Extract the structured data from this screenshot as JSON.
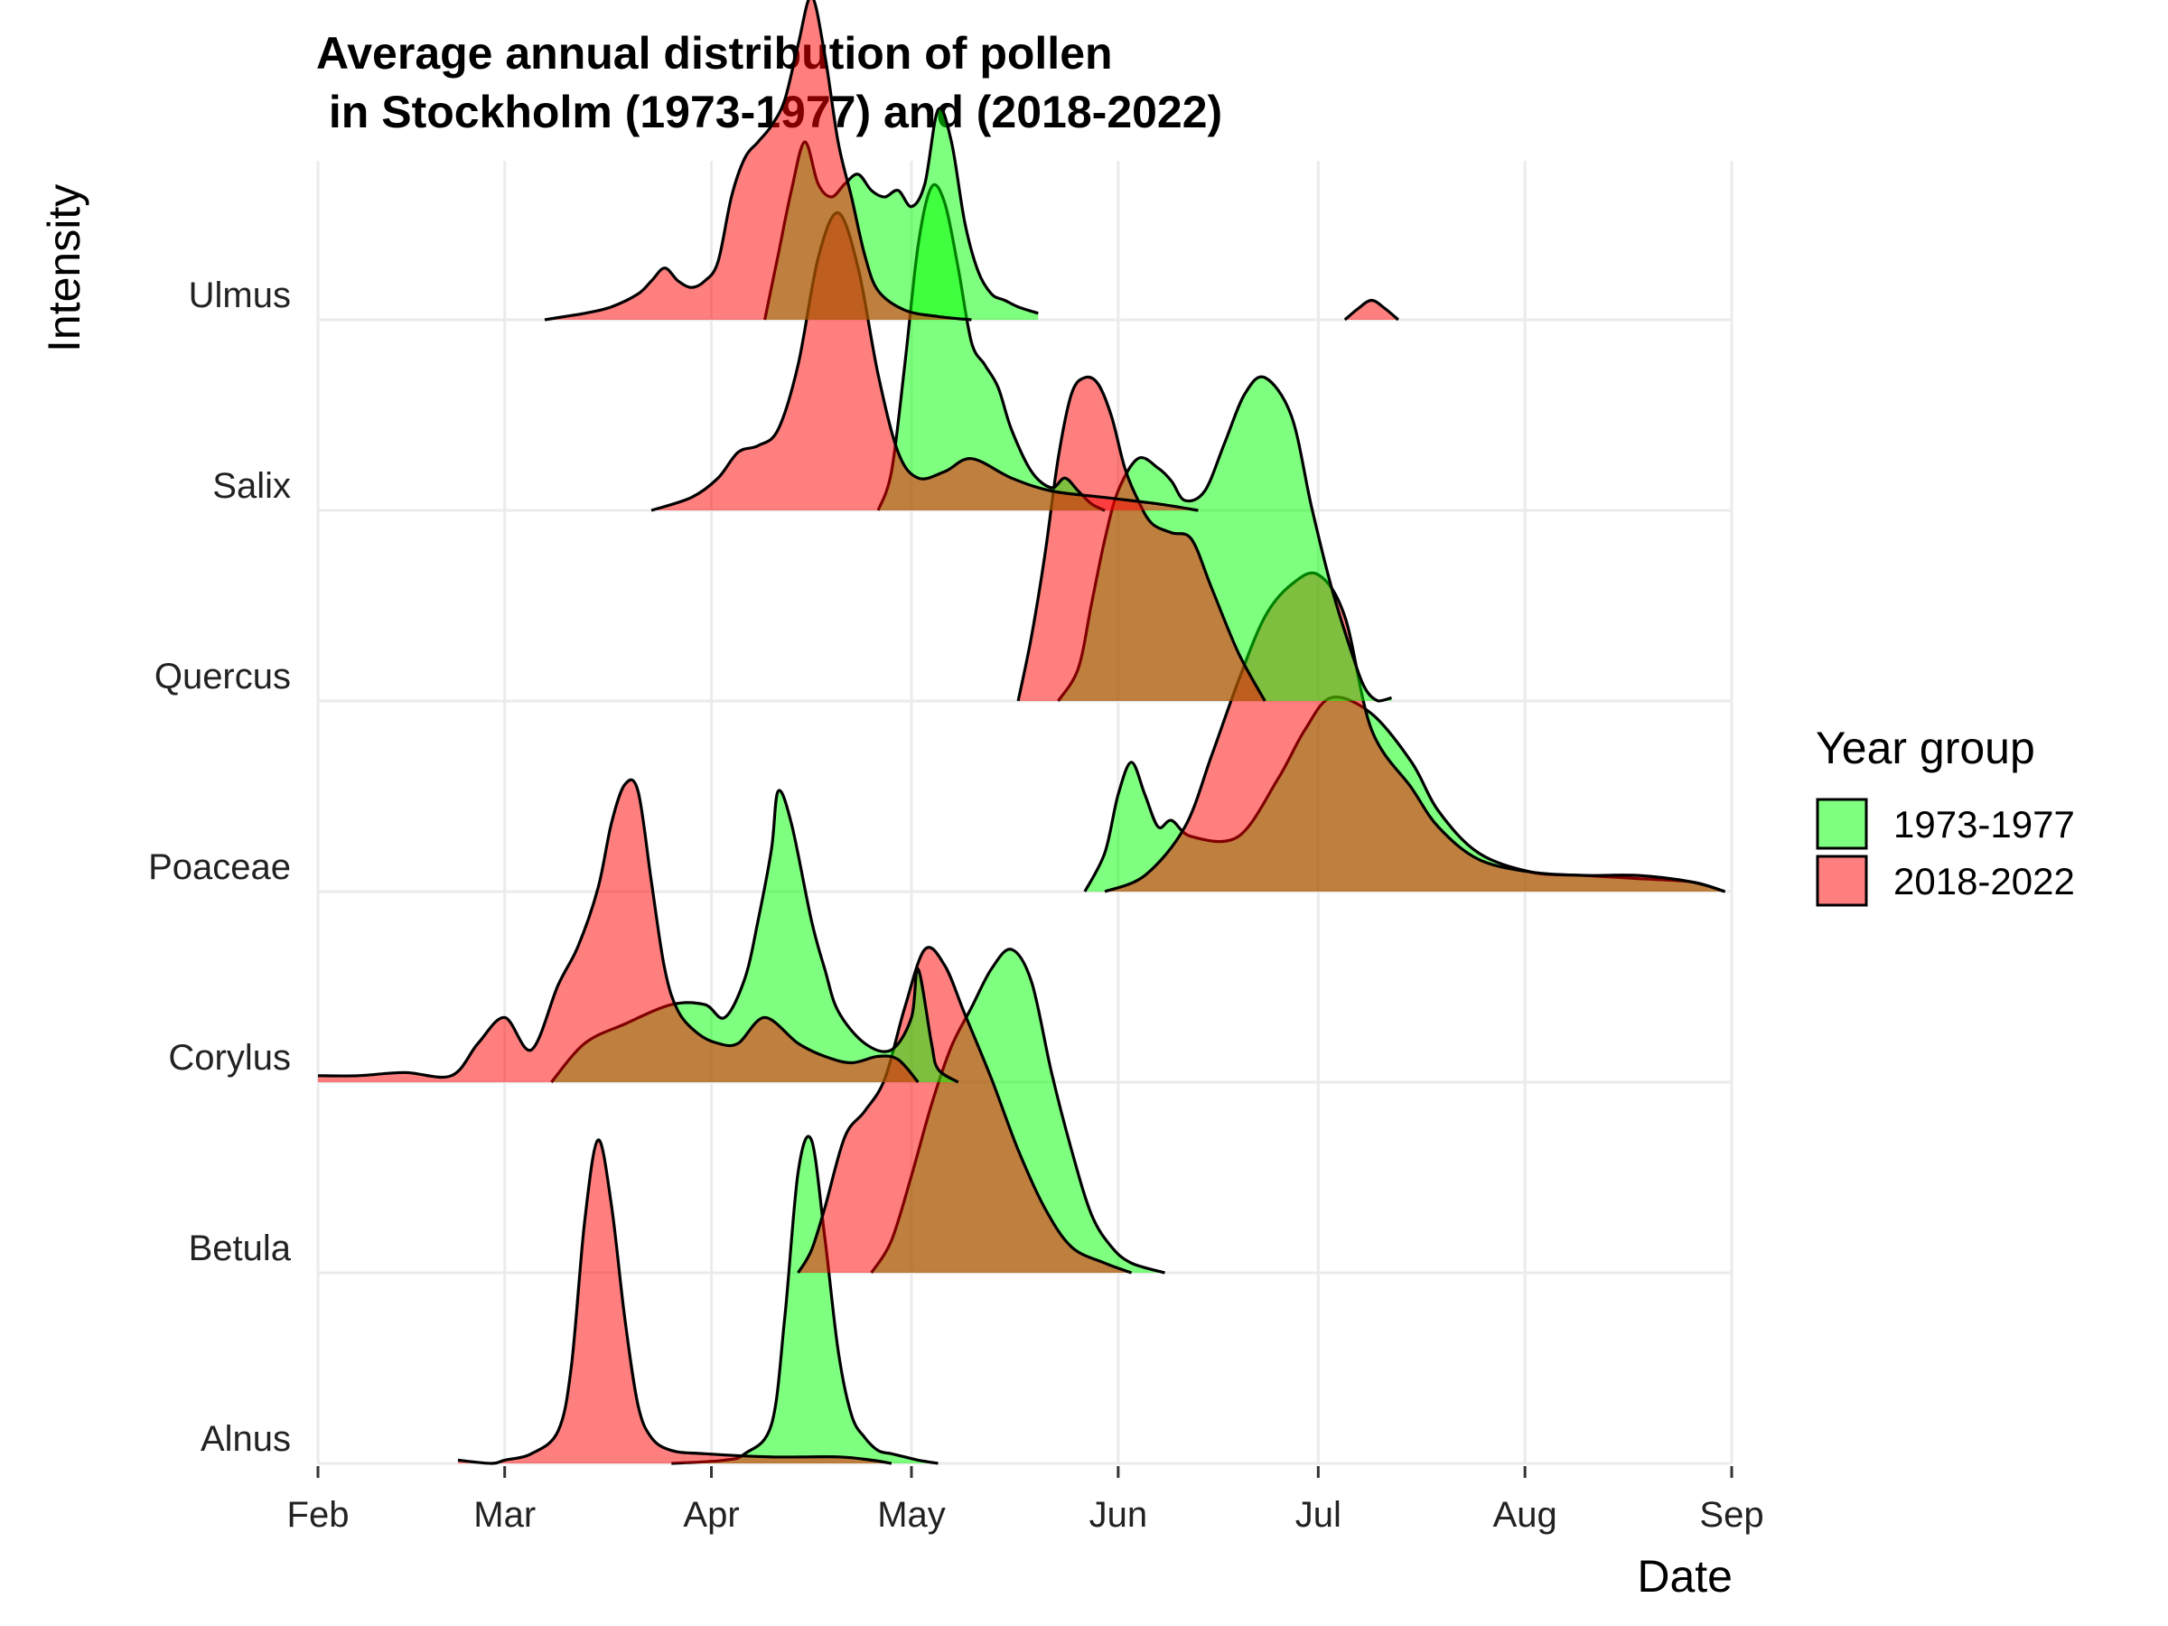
{
  "chart_data": {
    "type": "ridgeline",
    "title_lines": [
      "Average annual distribution of pollen",
      " in Stockholm (1973-1977) and (2018-2022)"
    ],
    "xlabel": "Date",
    "ylabel": "Intensity",
    "x_ticks": [
      "Feb",
      "Mar",
      "Apr",
      "May",
      "Jun",
      "Jul",
      "Aug",
      "Sep"
    ],
    "x_tick_days": [
      32,
      60,
      91,
      121,
      152,
      182,
      213,
      244
    ],
    "x_range_days": [
      32,
      244
    ],
    "categories": [
      "Alnus",
      "Betula",
      "Corylus",
      "Poaceae",
      "Quercus",
      "Salix",
      "Ulmus"
    ],
    "legend": {
      "title": "Year group",
      "position": "right",
      "items": [
        "1973-1977",
        "2018-2022"
      ]
    },
    "colors": {
      "1973-1977": "#00FF00",
      "2018-2022": "#FF0000",
      "outline": "#000000",
      "grid": "#EBEBEB"
    },
    "fill_alpha": 0.5,
    "series": [
      {
        "name": "1973-1977",
        "category": "Alnus",
        "day": [
          85,
          93,
          96,
          100,
          102,
          104,
          106,
          108,
          110,
          112,
          114,
          116,
          118,
          120,
          122,
          125
        ],
        "density": [
          0,
          0.01,
          0.03,
          0.12,
          0.45,
          0.9,
          1.0,
          0.7,
          0.35,
          0.15,
          0.08,
          0.04,
          0.03,
          0.02,
          0.01,
          0
        ]
      },
      {
        "name": "2018-2022",
        "category": "Alnus",
        "day": [
          53,
          58,
          60,
          64,
          68,
          70,
          72,
          74,
          76,
          78,
          80,
          82,
          85,
          90,
          100,
          110,
          115,
          118
        ],
        "density": [
          0.01,
          0.0,
          0.01,
          0.03,
          0.1,
          0.3,
          0.75,
          1.0,
          0.8,
          0.45,
          0.18,
          0.08,
          0.04,
          0.03,
          0.02,
          0.02,
          0.01,
          0
        ]
      },
      {
        "name": "1973-1977",
        "category": "Betula",
        "day": [
          115,
          118,
          121,
          124,
          127,
          130,
          133,
          136,
          139,
          142,
          145,
          148,
          151,
          154,
          159
        ],
        "density": [
          0,
          0.1,
          0.3,
          0.52,
          0.7,
          0.82,
          0.94,
          1.0,
          0.9,
          0.62,
          0.38,
          0.18,
          0.08,
          0.03,
          0
        ]
      },
      {
        "name": "2018-2022",
        "category": "Betula",
        "day": [
          104,
          106,
          108,
          111,
          114,
          117,
          120,
          123,
          126,
          129,
          133,
          137,
          141,
          145,
          150,
          154
        ],
        "density": [
          0,
          0.07,
          0.2,
          0.42,
          0.5,
          0.6,
          0.82,
          1.0,
          0.95,
          0.8,
          0.6,
          0.38,
          0.2,
          0.08,
          0.03,
          0
        ]
      },
      {
        "name": "1973-1977",
        "category": "Corylus",
        "day": [
          67,
          72,
          78,
          85,
          90,
          93,
          96,
          98,
          100,
          101,
          103,
          106,
          108,
          110,
          114,
          118,
          121,
          122,
          124,
          125,
          128
        ],
        "density": [
          0,
          0.12,
          0.18,
          0.24,
          0.24,
          0.2,
          0.32,
          0.5,
          0.72,
          0.9,
          0.8,
          0.5,
          0.35,
          0.22,
          0.12,
          0.1,
          0.2,
          0.35,
          0.12,
          0.04,
          0
        ]
      },
      {
        "name": "2018-2022",
        "category": "Corylus",
        "day": [
          32,
          38,
          45,
          52,
          56,
          60,
          64,
          68,
          71,
          74,
          76,
          78,
          80,
          82,
          84,
          86,
          89,
          92,
          95,
          99,
          104,
          108,
          112,
          116,
          119,
          122
        ],
        "density": [
          0.02,
          0.02,
          0.03,
          0.02,
          0.12,
          0.2,
          0.1,
          0.3,
          0.42,
          0.6,
          0.8,
          0.92,
          0.9,
          0.62,
          0.35,
          0.22,
          0.15,
          0.12,
          0.12,
          0.2,
          0.12,
          0.08,
          0.06,
          0.08,
          0.07,
          0
        ]
      },
      {
        "name": "1973-1977",
        "category": "Poaceae",
        "day": [
          147,
          150,
          152,
          154,
          156,
          158,
          160,
          163,
          170,
          176,
          180,
          184,
          190,
          196,
          200,
          206,
          214,
          222,
          230,
          238,
          243
        ],
        "density": [
          0,
          0.12,
          0.3,
          0.4,
          0.3,
          0.2,
          0.22,
          0.17,
          0.17,
          0.35,
          0.5,
          0.6,
          0.55,
          0.4,
          0.25,
          0.12,
          0.06,
          0.05,
          0.04,
          0.03,
          0
        ]
      },
      {
        "name": "2018-2022",
        "category": "Poaceae",
        "day": [
          150,
          156,
          162,
          166,
          170,
          174,
          178,
          182,
          186,
          190,
          196,
          200,
          206,
          214,
          222,
          230,
          238,
          243
        ],
        "density": [
          0,
          0.05,
          0.2,
          0.42,
          0.65,
          0.85,
          0.95,
          0.98,
          0.85,
          0.5,
          0.32,
          0.2,
          0.1,
          0.06,
          0.05,
          0.05,
          0.03,
          0
        ]
      },
      {
        "name": "1973-1977",
        "category": "Quercus",
        "day": [
          143,
          146,
          148,
          150,
          152,
          155,
          158,
          160,
          162,
          165,
          168,
          171,
          174,
          178,
          181,
          184,
          187,
          189,
          191,
          193
        ],
        "density": [
          0,
          0.1,
          0.3,
          0.5,
          0.65,
          0.75,
          0.72,
          0.68,
          0.62,
          0.65,
          0.8,
          0.95,
          1.0,
          0.88,
          0.6,
          0.35,
          0.15,
          0.04,
          0,
          0.01
        ]
      },
      {
        "name": "2018-2022",
        "category": "Quercus",
        "day": [
          137,
          139,
          141,
          143,
          145,
          147,
          149,
          151,
          153,
          155,
          157,
          160,
          163,
          166,
          170,
          174
        ],
        "density": [
          0,
          0.2,
          0.45,
          0.75,
          0.95,
          1.0,
          0.98,
          0.88,
          0.72,
          0.62,
          0.55,
          0.52,
          0.5,
          0.35,
          0.15,
          0
        ]
      },
      {
        "name": "1973-1977",
        "category": "Salix",
        "day": [
          116,
          118,
          120,
          122,
          124,
          126,
          128,
          130,
          132,
          134,
          136,
          139,
          142,
          144,
          146,
          148,
          150
        ],
        "density": [
          0,
          0.12,
          0.45,
          0.82,
          1.0,
          0.95,
          0.75,
          0.52,
          0.45,
          0.38,
          0.25,
          0.12,
          0.07,
          0.1,
          0.06,
          0.02,
          0
        ]
      },
      {
        "name": "2018-2022",
        "category": "Salix",
        "day": [
          82,
          88,
          92,
          95,
          98,
          101,
          104,
          107,
          110,
          113,
          116,
          119,
          122,
          126,
          130,
          136,
          142,
          150,
          158,
          164
        ],
        "density": [
          0,
          0.04,
          0.1,
          0.18,
          0.2,
          0.25,
          0.45,
          0.78,
          0.92,
          0.75,
          0.42,
          0.18,
          0.1,
          0.12,
          0.16,
          0.1,
          0.06,
          0.04,
          0.02,
          0
        ]
      },
      {
        "name": "1973-1977",
        "category": "Ulmus",
        "day": [
          99,
          101,
          103,
          105,
          107,
          109,
          111,
          113,
          115,
          117,
          119,
          121,
          123,
          125,
          127,
          129,
          131,
          133,
          135,
          137,
          140
        ],
        "density": [
          0,
          0.2,
          0.4,
          0.55,
          0.42,
          0.38,
          0.42,
          0.45,
          0.4,
          0.38,
          0.4,
          0.35,
          0.42,
          0.65,
          0.55,
          0.3,
          0.15,
          0.08,
          0.06,
          0.04,
          0.02
        ]
      },
      {
        "name": "2018-2022",
        "category": "Ulmus",
        "day": [
          66,
          69,
          72,
          76,
          80,
          82,
          84,
          86,
          88,
          90,
          92,
          94,
          96,
          98,
          100,
          102,
          104,
          106,
          108,
          110,
          112,
          114,
          116,
          120,
          125,
          130
        ],
        "density": [
          0,
          0.01,
          0.02,
          0.04,
          0.08,
          0.12,
          0.16,
          0.12,
          0.1,
          0.12,
          0.18,
          0.38,
          0.5,
          0.55,
          0.6,
          0.68,
          0.85,
          1.0,
          0.82,
          0.55,
          0.38,
          0.2,
          0.09,
          0.03,
          0.01,
          0
        ]
      },
      {
        "name": "2018-2022",
        "category": "Ulmus",
        "day": [
          186,
          188,
          190,
          192,
          194
        ],
        "density": [
          0,
          0.035,
          0.06,
          0.035,
          0
        ]
      }
    ]
  }
}
